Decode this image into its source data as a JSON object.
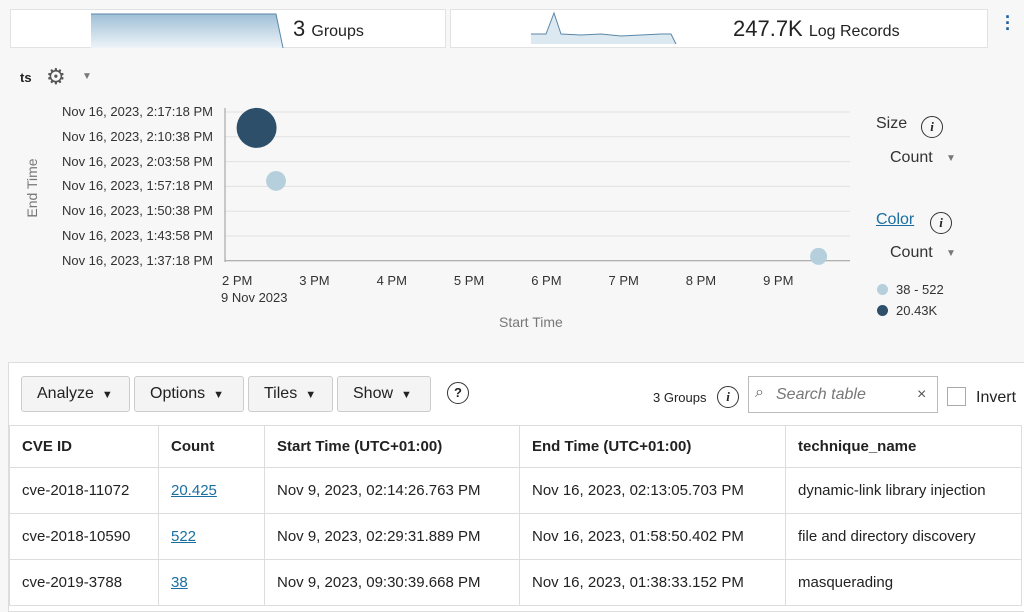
{
  "summary": {
    "groups_value": "3",
    "groups_label": "Groups",
    "records_value": "247.7K",
    "records_label": "Log Records"
  },
  "chart_header": {
    "field": "ts"
  },
  "chart_data": {
    "type": "scatter",
    "xlabel": "Start Time",
    "ylabel": "End Time",
    "x_ticks": [
      "2 PM",
      "3 PM",
      "4 PM",
      "5 PM",
      "6 PM",
      "7 PM",
      "8 PM",
      "9 PM"
    ],
    "x_date_label": "9 Nov 2023",
    "y_ticks": [
      "Nov 16, 2023, 2:17:18 PM",
      "Nov 16, 2023, 2:10:38 PM",
      "Nov 16, 2023, 2:03:58 PM",
      "Nov 16, 2023, 1:57:18 PM",
      "Nov 16, 2023, 1:50:38 PM",
      "Nov 16, 2023, 1:43:58 PM",
      "Nov 16, 2023, 1:37:18 PM"
    ],
    "points": [
      {
        "label": "cve-2018-11072",
        "x": "2023-11-09 14:14:26",
        "y": "2023-11-16 14:13:05",
        "count": 20425,
        "color": "#2d4f69"
      },
      {
        "label": "cve-2018-10590",
        "x": "2023-11-09 14:29:31",
        "y": "2023-11-16 13:58:50",
        "count": 522,
        "color": "#b6cfdc"
      },
      {
        "label": "cve-2019-3788",
        "x": "2023-11-09 21:30:39",
        "y": "2023-11-16 13:38:33",
        "count": 38,
        "color": "#b6cfdc"
      }
    ]
  },
  "legend": {
    "size_title": "Size",
    "size_value": "Count",
    "color_title": "Color",
    "color_value": "Count",
    "items": [
      {
        "label": "38 - 522",
        "color": "#b6cfdc"
      },
      {
        "label": "20.43K",
        "color": "#2d4f69"
      }
    ]
  },
  "toolbar": {
    "analyze": "Analyze",
    "options": "Options",
    "tiles": "Tiles",
    "show": "Show",
    "help": "?",
    "groups": "3 Groups",
    "search_placeholder": "Search table",
    "clear": "×",
    "invert": "Invert"
  },
  "table": {
    "headers": [
      "CVE ID",
      "Count",
      "Start Time (UTC+01:00)",
      "End Time (UTC+01:00)",
      "technique_name"
    ],
    "rows": [
      [
        "cve-2018-11072",
        "20.425",
        "Nov 9, 2023, 02:14:26.763 PM",
        "Nov 16, 2023, 02:13:05.703 PM",
        "dynamic-link library injection"
      ],
      [
        "cve-2018-10590",
        "522",
        "Nov 9, 2023, 02:29:31.889 PM",
        "Nov 16, 2023, 01:58:50.402 PM",
        "file and directory discovery"
      ],
      [
        "cve-2019-3788",
        "38",
        "Nov 9, 2023, 09:30:39.668 PM",
        "Nov 16, 2023, 01:38:33.152 PM",
        "masquerading"
      ]
    ]
  }
}
